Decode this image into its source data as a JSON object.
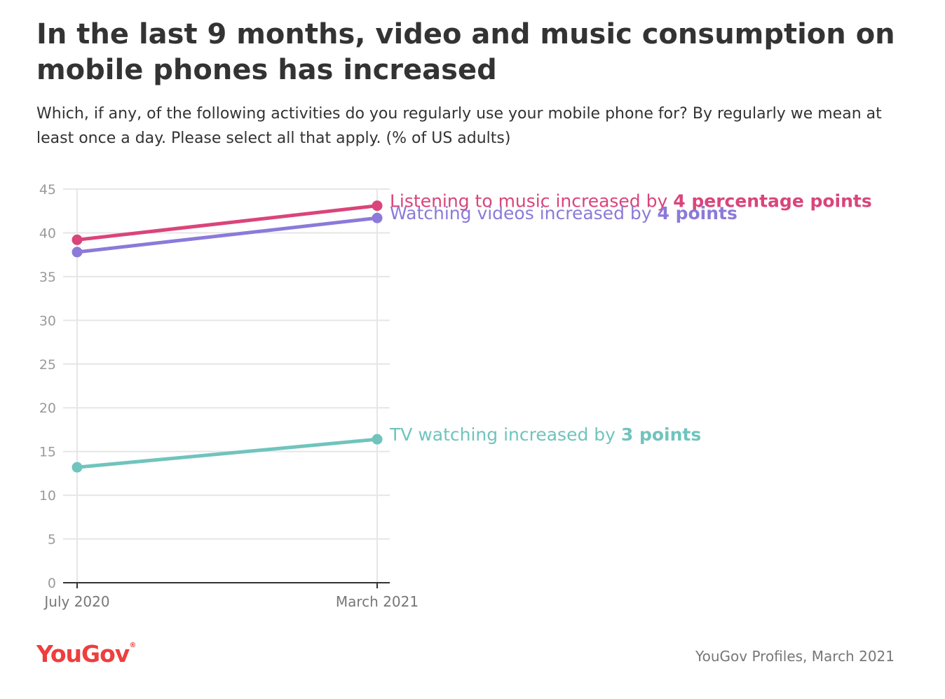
{
  "title": "In the last 9 months, video and music consumption on mobile phones has increased",
  "subtitle": "Which, if any, of the following activities do you regularly use your mobile phone for? By regularly we mean at least once a day. Please select all that apply. (% of US adults)",
  "logo": {
    "text": "YouGov",
    "reg": "®"
  },
  "source": "YouGov Profiles, March 2021",
  "colors": {
    "music": "#d9457a",
    "videos": "#8b7ad9",
    "tv": "#70c4bd",
    "grid": "#e6e6e6",
    "axis": "#333333",
    "brand": "#ee3e3e"
  },
  "chart_data": {
    "type": "line",
    "title": "In the last 9 months, video and music consumption on mobile phones has increased",
    "xlabel": "",
    "ylabel": "",
    "categories": [
      "July 2020",
      "March 2021"
    ],
    "ylim": [
      0,
      45
    ],
    "yticks": [
      0,
      5,
      10,
      15,
      20,
      25,
      30,
      35,
      40,
      45
    ],
    "grid": true,
    "legend": "none",
    "series": [
      {
        "key": "music",
        "values": [
          39.2,
          43.1
        ],
        "color": "#d9457a",
        "annotation_text": "Listening to music increased by ",
        "annotation_bold": "4 percentage points"
      },
      {
        "key": "videos",
        "values": [
          37.8,
          41.7
        ],
        "color": "#8b7ad9",
        "annotation_text": "Watching videos increased by ",
        "annotation_bold": "4 points"
      },
      {
        "key": "tv",
        "values": [
          13.2,
          16.4
        ],
        "color": "#70c4bd",
        "annotation_text": "TV watching increased by ",
        "annotation_bold": "3 points"
      }
    ]
  }
}
